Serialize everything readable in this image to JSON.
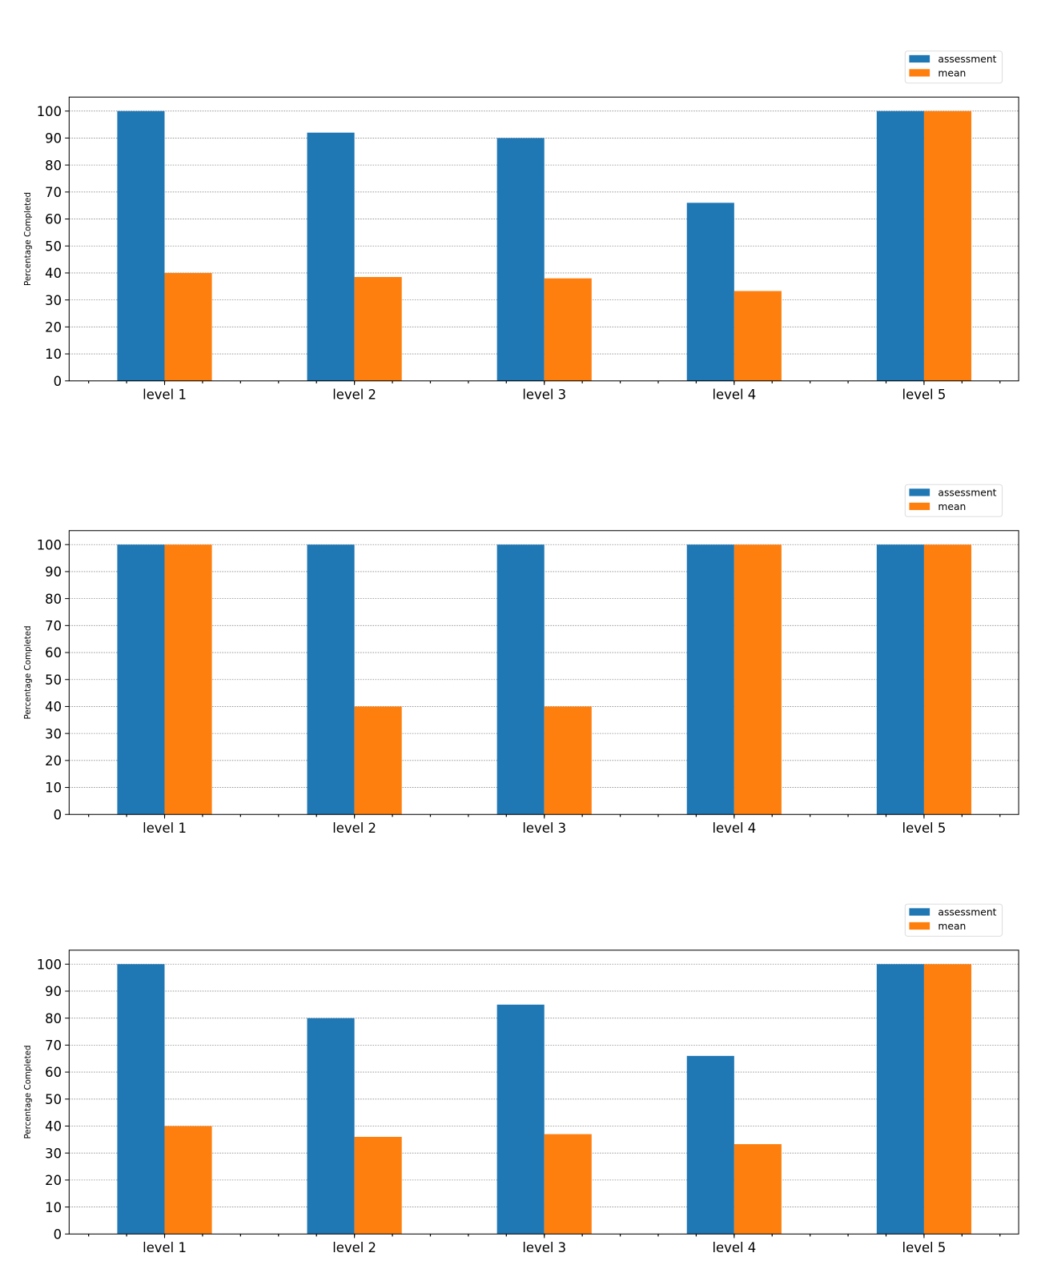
{
  "colors": {
    "assessment": "#1f77b4",
    "mean": "#ff7f0e"
  },
  "chart_data": [
    {
      "type": "bar",
      "categories": [
        "level 1",
        "level 2",
        "level 3",
        "level 4",
        "level 5"
      ],
      "series": [
        {
          "name": "assessment",
          "values": [
            100,
            92,
            90,
            66,
            100
          ]
        },
        {
          "name": "mean",
          "values": [
            40,
            38.5,
            38,
            33.3,
            100
          ]
        }
      ],
      "xlabel": "",
      "ylabel": "Percentage Completed",
      "ylim": [
        0,
        105
      ],
      "yticks": [
        0,
        10,
        20,
        30,
        40,
        50,
        60,
        70,
        80,
        90,
        100
      ],
      "grid": "y dotted",
      "legend": "top-right outside"
    },
    {
      "type": "bar",
      "categories": [
        "level 1",
        "level 2",
        "level 3",
        "level 4",
        "level 5"
      ],
      "series": [
        {
          "name": "assessment",
          "values": [
            100,
            100,
            100,
            100,
            100
          ]
        },
        {
          "name": "mean",
          "values": [
            100,
            40,
            40,
            100,
            100
          ]
        }
      ],
      "xlabel": "",
      "ylabel": "Percentage Completed",
      "ylim": [
        0,
        105
      ],
      "yticks": [
        0,
        10,
        20,
        30,
        40,
        50,
        60,
        70,
        80,
        90,
        100
      ],
      "grid": "y dotted",
      "legend": "top-right outside"
    },
    {
      "type": "bar",
      "categories": [
        "level 1",
        "level 2",
        "level 3",
        "level 4",
        "level 5"
      ],
      "series": [
        {
          "name": "assessment",
          "values": [
            100,
            80,
            85,
            66,
            100
          ]
        },
        {
          "name": "mean",
          "values": [
            40,
            36,
            37,
            33.3,
            100
          ]
        }
      ],
      "xlabel": "",
      "ylabel": "Percentage Completed",
      "ylim": [
        0,
        105
      ],
      "yticks": [
        0,
        10,
        20,
        30,
        40,
        50,
        60,
        70,
        80,
        90,
        100
      ],
      "grid": "y dotted",
      "legend": "top-right outside"
    }
  ]
}
